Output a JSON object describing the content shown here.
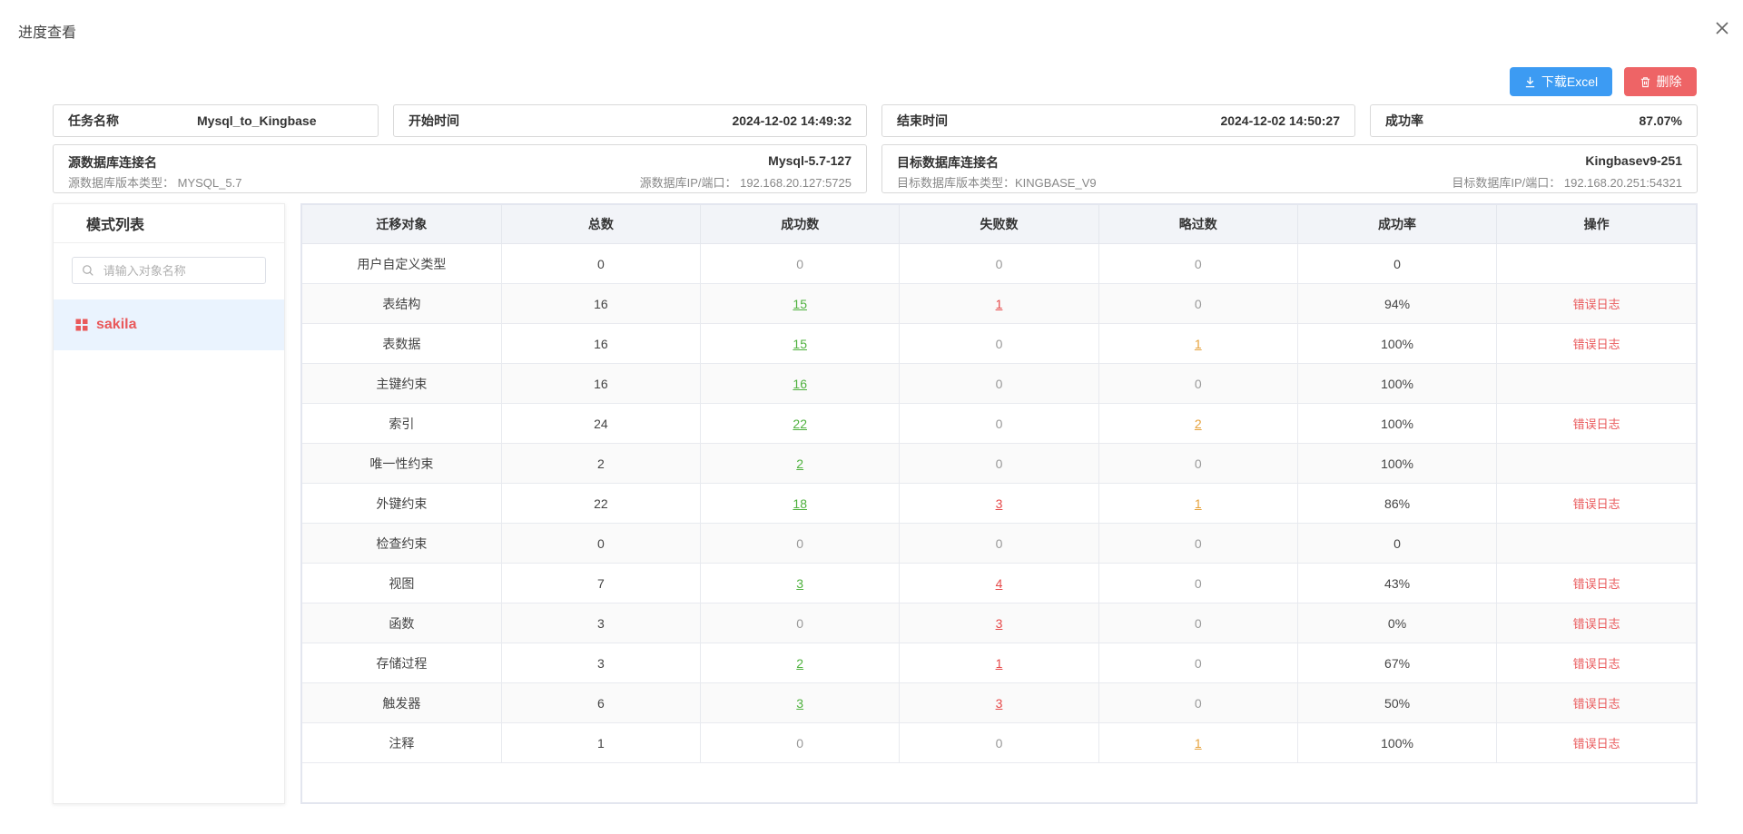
{
  "dialog": {
    "title": "进度查看"
  },
  "toolbar": {
    "download_label": "下载Excel",
    "delete_label": "删除"
  },
  "info": {
    "task_label": "任务名称",
    "task_value": "Mysql_to_Kingbase",
    "start_label": "开始时间",
    "start_value": "2024-12-02 14:49:32",
    "end_label": "结束时间",
    "end_value": "2024-12-02 14:50:27",
    "rate_label": "成功率",
    "rate_value": "87.07%",
    "src_label": "源数据库连接名",
    "src_value": "Mysql-5.7-127",
    "src_version": "源数据库版本类型： MYSQL_5.7",
    "src_ip": "源数据库IP/端口： 192.168.20.127:5725",
    "tgt_label": "目标数据库连接名",
    "tgt_value": "Kingbasev9-251",
    "tgt_version": "目标数据库版本类型：KINGBASE_V9",
    "tgt_ip": "目标数据库IP/端口： 192.168.20.251:54321"
  },
  "sidebar": {
    "title": "模式列表",
    "search_placeholder": "请输入对象名称",
    "items": [
      {
        "label": "sakila"
      }
    ]
  },
  "colors": {
    "accent": "#3c9bf3",
    "danger": "#ee6466",
    "success": "#4fb13e",
    "warning": "#e6a23c"
  },
  "table": {
    "headers": [
      "迁移对象",
      "总数",
      "成功数",
      "失败数",
      "略过数",
      "成功率",
      "操作"
    ],
    "rows": [
      {
        "name": "用户自定义类型",
        "total": "0",
        "success": "0",
        "fail": "0",
        "skip": "0",
        "rate": "0",
        "action": ""
      },
      {
        "name": "表结构",
        "total": "16",
        "success": "15",
        "fail": "1",
        "skip": "0",
        "rate": "94%",
        "action": "错误日志"
      },
      {
        "name": "表数据",
        "total": "16",
        "success": "15",
        "fail": "0",
        "skip": "1",
        "rate": "100%",
        "action": "错误日志"
      },
      {
        "name": "主键约束",
        "total": "16",
        "success": "16",
        "fail": "0",
        "skip": "0",
        "rate": "100%",
        "action": ""
      },
      {
        "name": "索引",
        "total": "24",
        "success": "22",
        "fail": "0",
        "skip": "2",
        "rate": "100%",
        "action": "错误日志"
      },
      {
        "name": "唯一性约束",
        "total": "2",
        "success": "2",
        "fail": "0",
        "skip": "0",
        "rate": "100%",
        "action": ""
      },
      {
        "name": "外键约束",
        "total": "22",
        "success": "18",
        "fail": "3",
        "skip": "1",
        "rate": "86%",
        "action": "错误日志"
      },
      {
        "name": "检查约束",
        "total": "0",
        "success": "0",
        "fail": "0",
        "skip": "0",
        "rate": "0",
        "action": ""
      },
      {
        "name": "视图",
        "total": "7",
        "success": "3",
        "fail": "4",
        "skip": "0",
        "rate": "43%",
        "action": "错误日志"
      },
      {
        "name": "函数",
        "total": "3",
        "success": "0",
        "fail": "3",
        "skip": "0",
        "rate": "0%",
        "action": "错误日志"
      },
      {
        "name": "存储过程",
        "total": "3",
        "success": "2",
        "fail": "1",
        "skip": "0",
        "rate": "67%",
        "action": "错误日志"
      },
      {
        "name": "触发器",
        "total": "6",
        "success": "3",
        "fail": "3",
        "skip": "0",
        "rate": "50%",
        "action": "错误日志"
      },
      {
        "name": "注释",
        "total": "1",
        "success": "0",
        "fail": "0",
        "skip": "1",
        "rate": "100%",
        "action": "错误日志"
      }
    ]
  }
}
